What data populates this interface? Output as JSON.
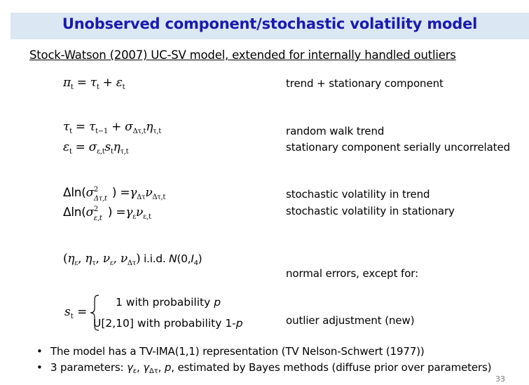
{
  "slide": {
    "title": "Unobserved component/stochastic volatility model",
    "subtitle": "Stock-Watson (2007) UC-SV model, extended for internally handled outliers",
    "page_number": "33"
  },
  "equations": {
    "eq1": {
      "pi": "π",
      "t": "t",
      "eq": " = ",
      "tau": "τ",
      "plus": " + ",
      "eps": "ε"
    },
    "eq2": {
      "t1": "t−1",
      "sigma": "σ",
      "sub_dtt": "Δτ,t",
      "eta": "η",
      "sub_tt": "τ,t"
    },
    "eq3": {
      "s": "s",
      "sub_et": "ε,t"
    },
    "eq4": {
      "dln": "Δln(",
      "sq": "2",
      "gamma": "γ",
      "sub_dt": "Δτ",
      "nu": "ν"
    },
    "eq5": {
      "sub_e": "ε"
    },
    "eq6": {
      "open": "(",
      "close": ")",
      "iid": " i.i.d. ",
      "N": "N",
      "dist": "(0,",
      "I": "I",
      "four": "4",
      "end": ")"
    },
    "eq7": {
      "s": "s",
      "t": "t",
      "eq": " ="
    }
  },
  "descriptions": {
    "d1": "trend + stationary component",
    "d2": "random walk trend",
    "d3": "stationary component serially uncorrelated",
    "d4": "stochastic volatility in trend",
    "d5": "stochastic volatility in stationary",
    "d6": "normal errors, except for:",
    "d7": "outlier adjustment (new)"
  },
  "cases": {
    "case1_text": "1 with probability ",
    "case1_var": "p",
    "case2_text": "U[2,10] with probability 1-",
    "case2_var": "p"
  },
  "bullets": {
    "b1": "The model has a TV-IMA(1,1) representation (TV Nelson-Schwert (1977))",
    "b2_pre": "3 parameters: ",
    "b2_g1": "γ",
    "b2_s1": "ε",
    "b2_g2": "γ",
    "b2_s2": "Δτ",
    "b2_p": "p",
    "b2_post": ", estimated by Bayes methods (diffuse prior over parameters)",
    "marker": "•",
    "comma": ", "
  }
}
